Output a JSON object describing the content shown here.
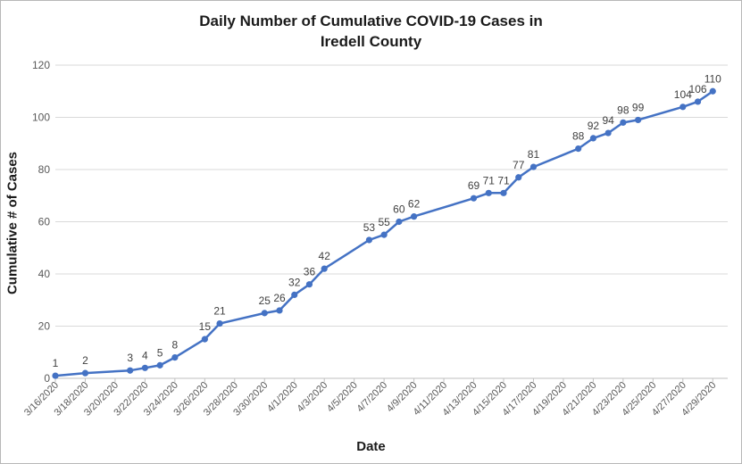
{
  "chart_data": {
    "type": "line",
    "title_lines": [
      "Daily Number of Cumulative COVID-19 Cases in",
      "Iredell County"
    ],
    "xlabel": "Date",
    "ylabel": "Cumulative # of Cases",
    "ylim": [
      0,
      120
    ],
    "yticks": [
      0,
      20,
      40,
      60,
      80,
      100,
      120
    ],
    "xlim": [
      "3/16/2020",
      "4/30/2020"
    ],
    "xtick_labels": [
      "3/16/2020",
      "3/18/2020",
      "3/20/2020",
      "3/22/2020",
      "3/24/2020",
      "3/26/2020",
      "3/28/2020",
      "3/30/2020",
      "4/1/2020",
      "4/3/2020",
      "4/5/2020",
      "4/7/2020",
      "4/9/2020",
      "4/11/2020",
      "4/13/2020",
      "4/15/2020",
      "4/17/2020",
      "4/19/2020",
      "4/21/2020",
      "4/23/2020",
      "4/25/2020",
      "4/27/2020",
      "4/29/2020"
    ],
    "grid": true,
    "legend": "none",
    "color": "#4472C4",
    "series": [
      {
        "x": [
          "3/16/2020",
          "3/18/2020",
          "3/21/2020",
          "3/22/2020",
          "3/23/2020",
          "3/24/2020",
          "3/26/2020",
          "3/27/2020",
          "3/30/2020",
          "3/31/2020",
          "4/1/2020",
          "4/2/2020",
          "4/3/2020",
          "4/6/2020",
          "4/7/2020",
          "4/8/2020",
          "4/9/2020",
          "4/13/2020",
          "4/14/2020",
          "4/15/2020",
          "4/16/2020",
          "4/17/2020",
          "4/20/2020",
          "4/21/2020",
          "4/22/2020",
          "4/23/2020",
          "4/24/2020",
          "4/27/2020",
          "4/28/2020",
          "4/29/2020"
        ],
        "y": [
          1,
          2,
          3,
          4,
          5,
          8,
          15,
          21,
          25,
          26,
          32,
          36,
          42,
          53,
          55,
          60,
          62,
          69,
          71,
          71,
          77,
          81,
          88,
          92,
          94,
          98,
          99,
          104,
          106,
          110
        ]
      }
    ]
  }
}
